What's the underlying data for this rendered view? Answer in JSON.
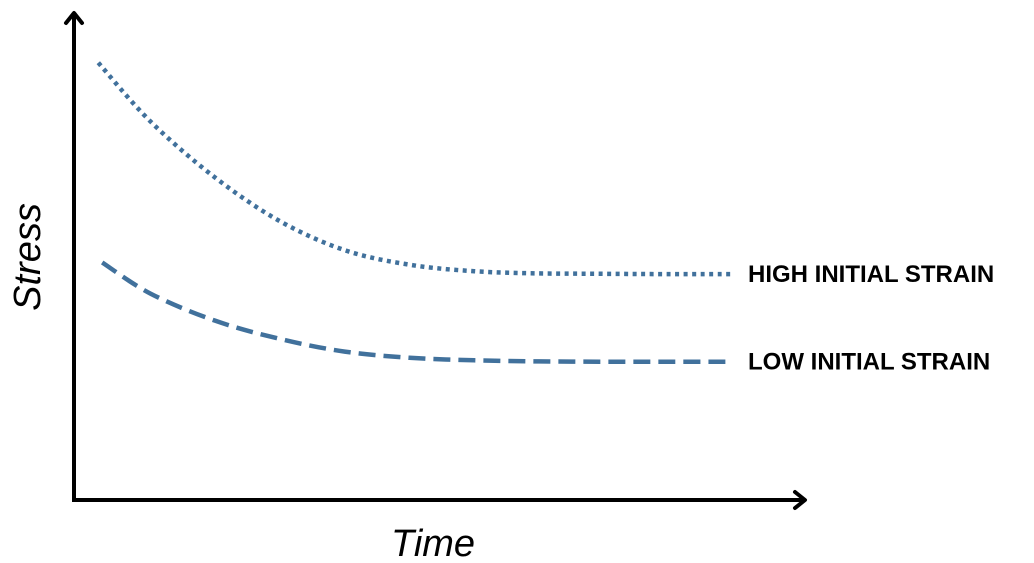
{
  "colors": {
    "axis": "#000000",
    "series": "#41719c"
  },
  "chart_data": {
    "type": "line",
    "title": "",
    "xlabel": "Time",
    "ylabel": "Stress",
    "xlim": [
      0,
      100
    ],
    "ylim": [
      0,
      100
    ],
    "grid": false,
    "ticks": false,
    "legend": "inline-right",
    "series": [
      {
        "name": "HIGH INITIAL STRAIN",
        "style": "dotted",
        "x": [
          1.9,
          10,
          20,
          30,
          40,
          50,
          60,
          70,
          80,
          90,
          100
        ],
        "y": [
          99.8,
          83.5,
          68.0,
          56.0,
          48.0,
          44.0,
          42.2,
          41.6,
          41.5,
          41.4,
          41.4
        ]
      },
      {
        "name": "LOW INITIAL STRAIN",
        "style": "dashed",
        "x": [
          2.5,
          10,
          20,
          30,
          40,
          50,
          60,
          70,
          80,
          90,
          100
        ],
        "y": [
          44.6,
          36.0,
          28.5,
          23.5,
          20.0,
          18.3,
          17.6,
          17.3,
          17.2,
          17.2,
          17.2
        ]
      }
    ]
  }
}
